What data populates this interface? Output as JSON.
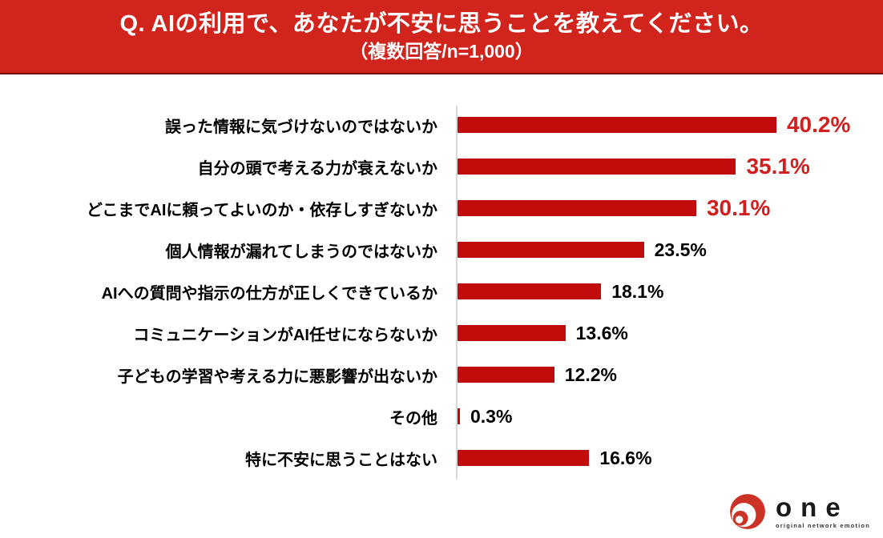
{
  "header": {
    "title": "Q. AIの利用で、あなたが不安に思うことを教えてください。",
    "subtitle": "（複数回答/n=1,000）",
    "bg_color": "#d0241c",
    "text_color": "#ffffff"
  },
  "chart_data": {
    "type": "bar",
    "orientation": "horizontal",
    "title": "Q. AIの利用で、あなたが不安に思うことを教えてください。（複数回答/n=1,000）",
    "categories": [
      "誤った情報に気づけないのではないか",
      "自分の頭で考える力が衰えないか",
      "どこまでAIに頼ってよいのか・依存しすぎないか",
      "個人情報が漏れてしまうのではないか",
      "AIへの質問や指示の仕方が正しくできているか",
      "コミュニケーションがAI任せにならないか",
      "子どもの学習や考える力に悪影響が出ないか",
      "その他",
      "特に不安に思うことはない"
    ],
    "values": [
      40.2,
      35.1,
      30.1,
      23.5,
      18.1,
      13.6,
      12.2,
      0.3,
      16.6
    ],
    "value_labels": [
      "40.2%",
      "35.1%",
      "30.1%",
      "23.5%",
      "18.1%",
      "13.6%",
      "12.2%",
      "0.3%",
      "16.6%"
    ],
    "highlight_count": 3,
    "xlim": [
      0,
      45
    ],
    "grid": false,
    "legend": false,
    "bar_color": "#c20b0b",
    "highlight_value_color": "#d01f1f",
    "value_color": "#000000",
    "axis_line_color": "#d9d9d9"
  },
  "footer": {
    "logo_word": "one",
    "logo_tagline": "original network emotion",
    "logo_color": "#cd3226"
  }
}
